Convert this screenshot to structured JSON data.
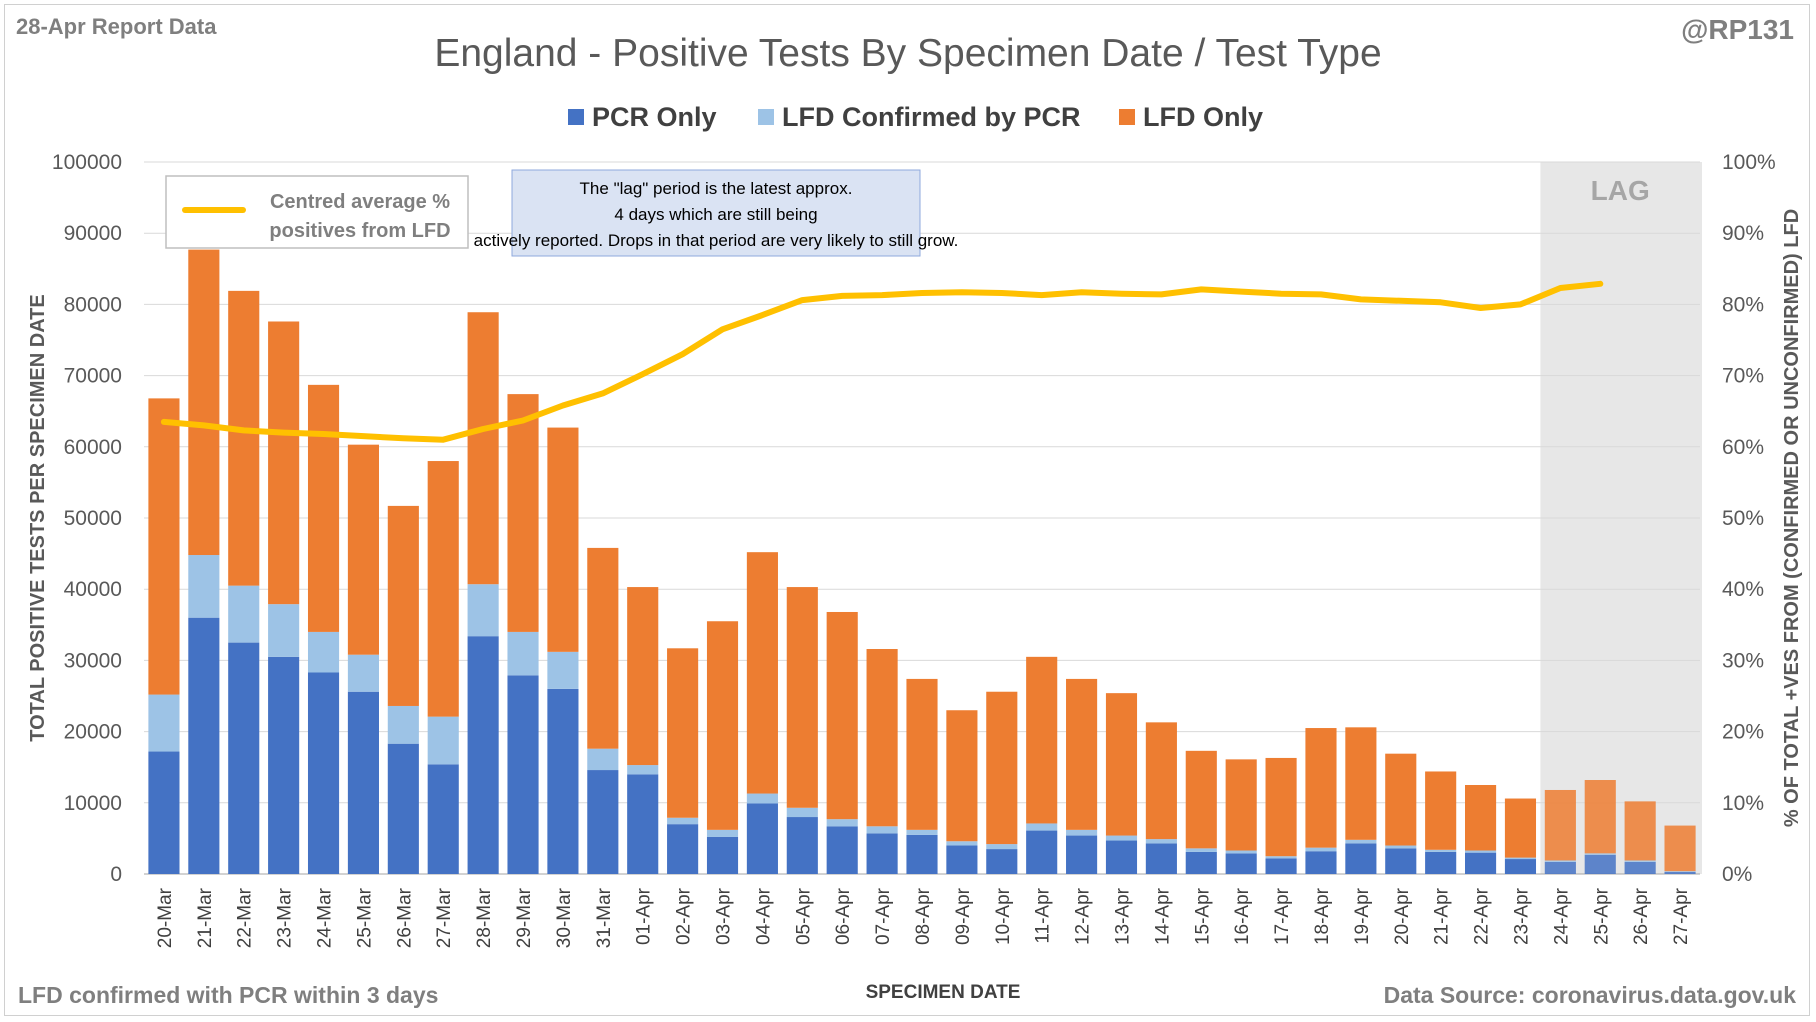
{
  "report_label": "28-Apr Report Data",
  "handle": "@RP131",
  "footnote": "LFD confirmed with PCR within 3 days",
  "source": "Data Source: coronavirus.data.gov.uk",
  "colors": {
    "pcr_only": "#4472c4",
    "lfd_confirmed": "#9dc3e6",
    "lfd_only": "#ed7d31",
    "line": "#ffc000",
    "lag_band": "#e7e7e7",
    "grid": "#d9d9d9",
    "text": "#595959"
  },
  "chart_data": {
    "type": "bar",
    "stacked": true,
    "title": "England - Positive Tests By Specimen Date / Test Type",
    "xlabel": "SPECIMEN DATE",
    "ylabel": "TOTAL POSITIVE TESTS PER SPECIMEN DATE",
    "y2label": "% OF TOTAL +VES FROM (CONFIRMED OR UNCONFIRMED) LFD",
    "ylim": [
      0,
      100000
    ],
    "y2lim": [
      0,
      100
    ],
    "yticks": [
      "0",
      "10000",
      "20000",
      "30000",
      "40000",
      "50000",
      "60000",
      "70000",
      "80000",
      "90000",
      "100000"
    ],
    "y2ticks": [
      "0%",
      "10%",
      "20%",
      "30%",
      "40%",
      "50%",
      "60%",
      "70%",
      "80%",
      "90%",
      "100%"
    ],
    "grid": true,
    "legend_position": "top",
    "categories": [
      "20-Mar",
      "21-Mar",
      "22-Mar",
      "23-Mar",
      "24-Mar",
      "25-Mar",
      "26-Mar",
      "27-Mar",
      "28-Mar",
      "29-Mar",
      "30-Mar",
      "31-Mar",
      "01-Apr",
      "02-Apr",
      "03-Apr",
      "04-Apr",
      "05-Apr",
      "06-Apr",
      "07-Apr",
      "08-Apr",
      "09-Apr",
      "10-Apr",
      "11-Apr",
      "12-Apr",
      "13-Apr",
      "14-Apr",
      "15-Apr",
      "16-Apr",
      "17-Apr",
      "18-Apr",
      "19-Apr",
      "20-Apr",
      "21-Apr",
      "22-Apr",
      "23-Apr",
      "24-Apr",
      "25-Apr",
      "26-Apr",
      "27-Apr"
    ],
    "series": [
      {
        "name": "PCR Only",
        "values": [
          17200,
          36000,
          32500,
          30500,
          28300,
          25600,
          18300,
          15400,
          33400,
          27900,
          26000,
          14600,
          14000,
          7000,
          5200,
          9900,
          8000,
          6700,
          5700,
          5500,
          4000,
          3500,
          6100,
          5400,
          4700,
          4300,
          3100,
          2900,
          2200,
          3200,
          4300,
          3600,
          3100,
          3000,
          2100,
          1700,
          2700,
          1700,
          300
        ]
      },
      {
        "name": "LFD Confirmed by PCR",
        "values": [
          8000,
          8800,
          8000,
          7400,
          5700,
          5200,
          5300,
          6700,
          7300,
          6100,
          5200,
          3000,
          1300,
          900,
          1000,
          1400,
          1300,
          1000,
          1000,
          700,
          600,
          700,
          1000,
          800,
          700,
          600,
          500,
          400,
          300,
          500,
          500,
          400,
          300,
          300,
          200,
          200,
          200,
          200,
          100
        ]
      },
      {
        "name": "LFD Only",
        "values": [
          41600,
          42900,
          41400,
          39700,
          34700,
          29500,
          28100,
          35900,
          38200,
          33400,
          31500,
          28200,
          25000,
          23800,
          29300,
          33900,
          31000,
          29100,
          24900,
          21200,
          18400,
          21400,
          23400,
          21200,
          20000,
          16400,
          13700,
          12800,
          13800,
          16800,
          15800,
          12900,
          11000,
          9200,
          8300,
          9900,
          10300,
          8300,
          6400
        ]
      }
    ],
    "line": {
      "name": "Centred average % positives from LFD",
      "values": [
        63.5,
        63,
        62.3,
        62,
        61.8,
        61.5,
        61.2,
        61,
        62.5,
        63.7,
        65.8,
        67.5,
        70.2,
        73,
        76.5,
        78.5,
        80.6,
        81.2,
        81.3,
        81.6,
        81.7,
        81.6,
        81.3,
        81.7,
        81.5,
        81.4,
        82.1,
        81.8,
        81.5,
        81.4,
        80.7,
        80.5,
        80.3,
        79.5,
        80,
        82.3,
        82.9,
        null,
        null
      ]
    },
    "lag": {
      "label": "LAG",
      "start": "24-Apr",
      "end": "27-Apr"
    },
    "annotation": "The \"lag\" period is the latest approx. 4 days which are still being actively reported.  Drops in that period are very likely to still grow."
  }
}
